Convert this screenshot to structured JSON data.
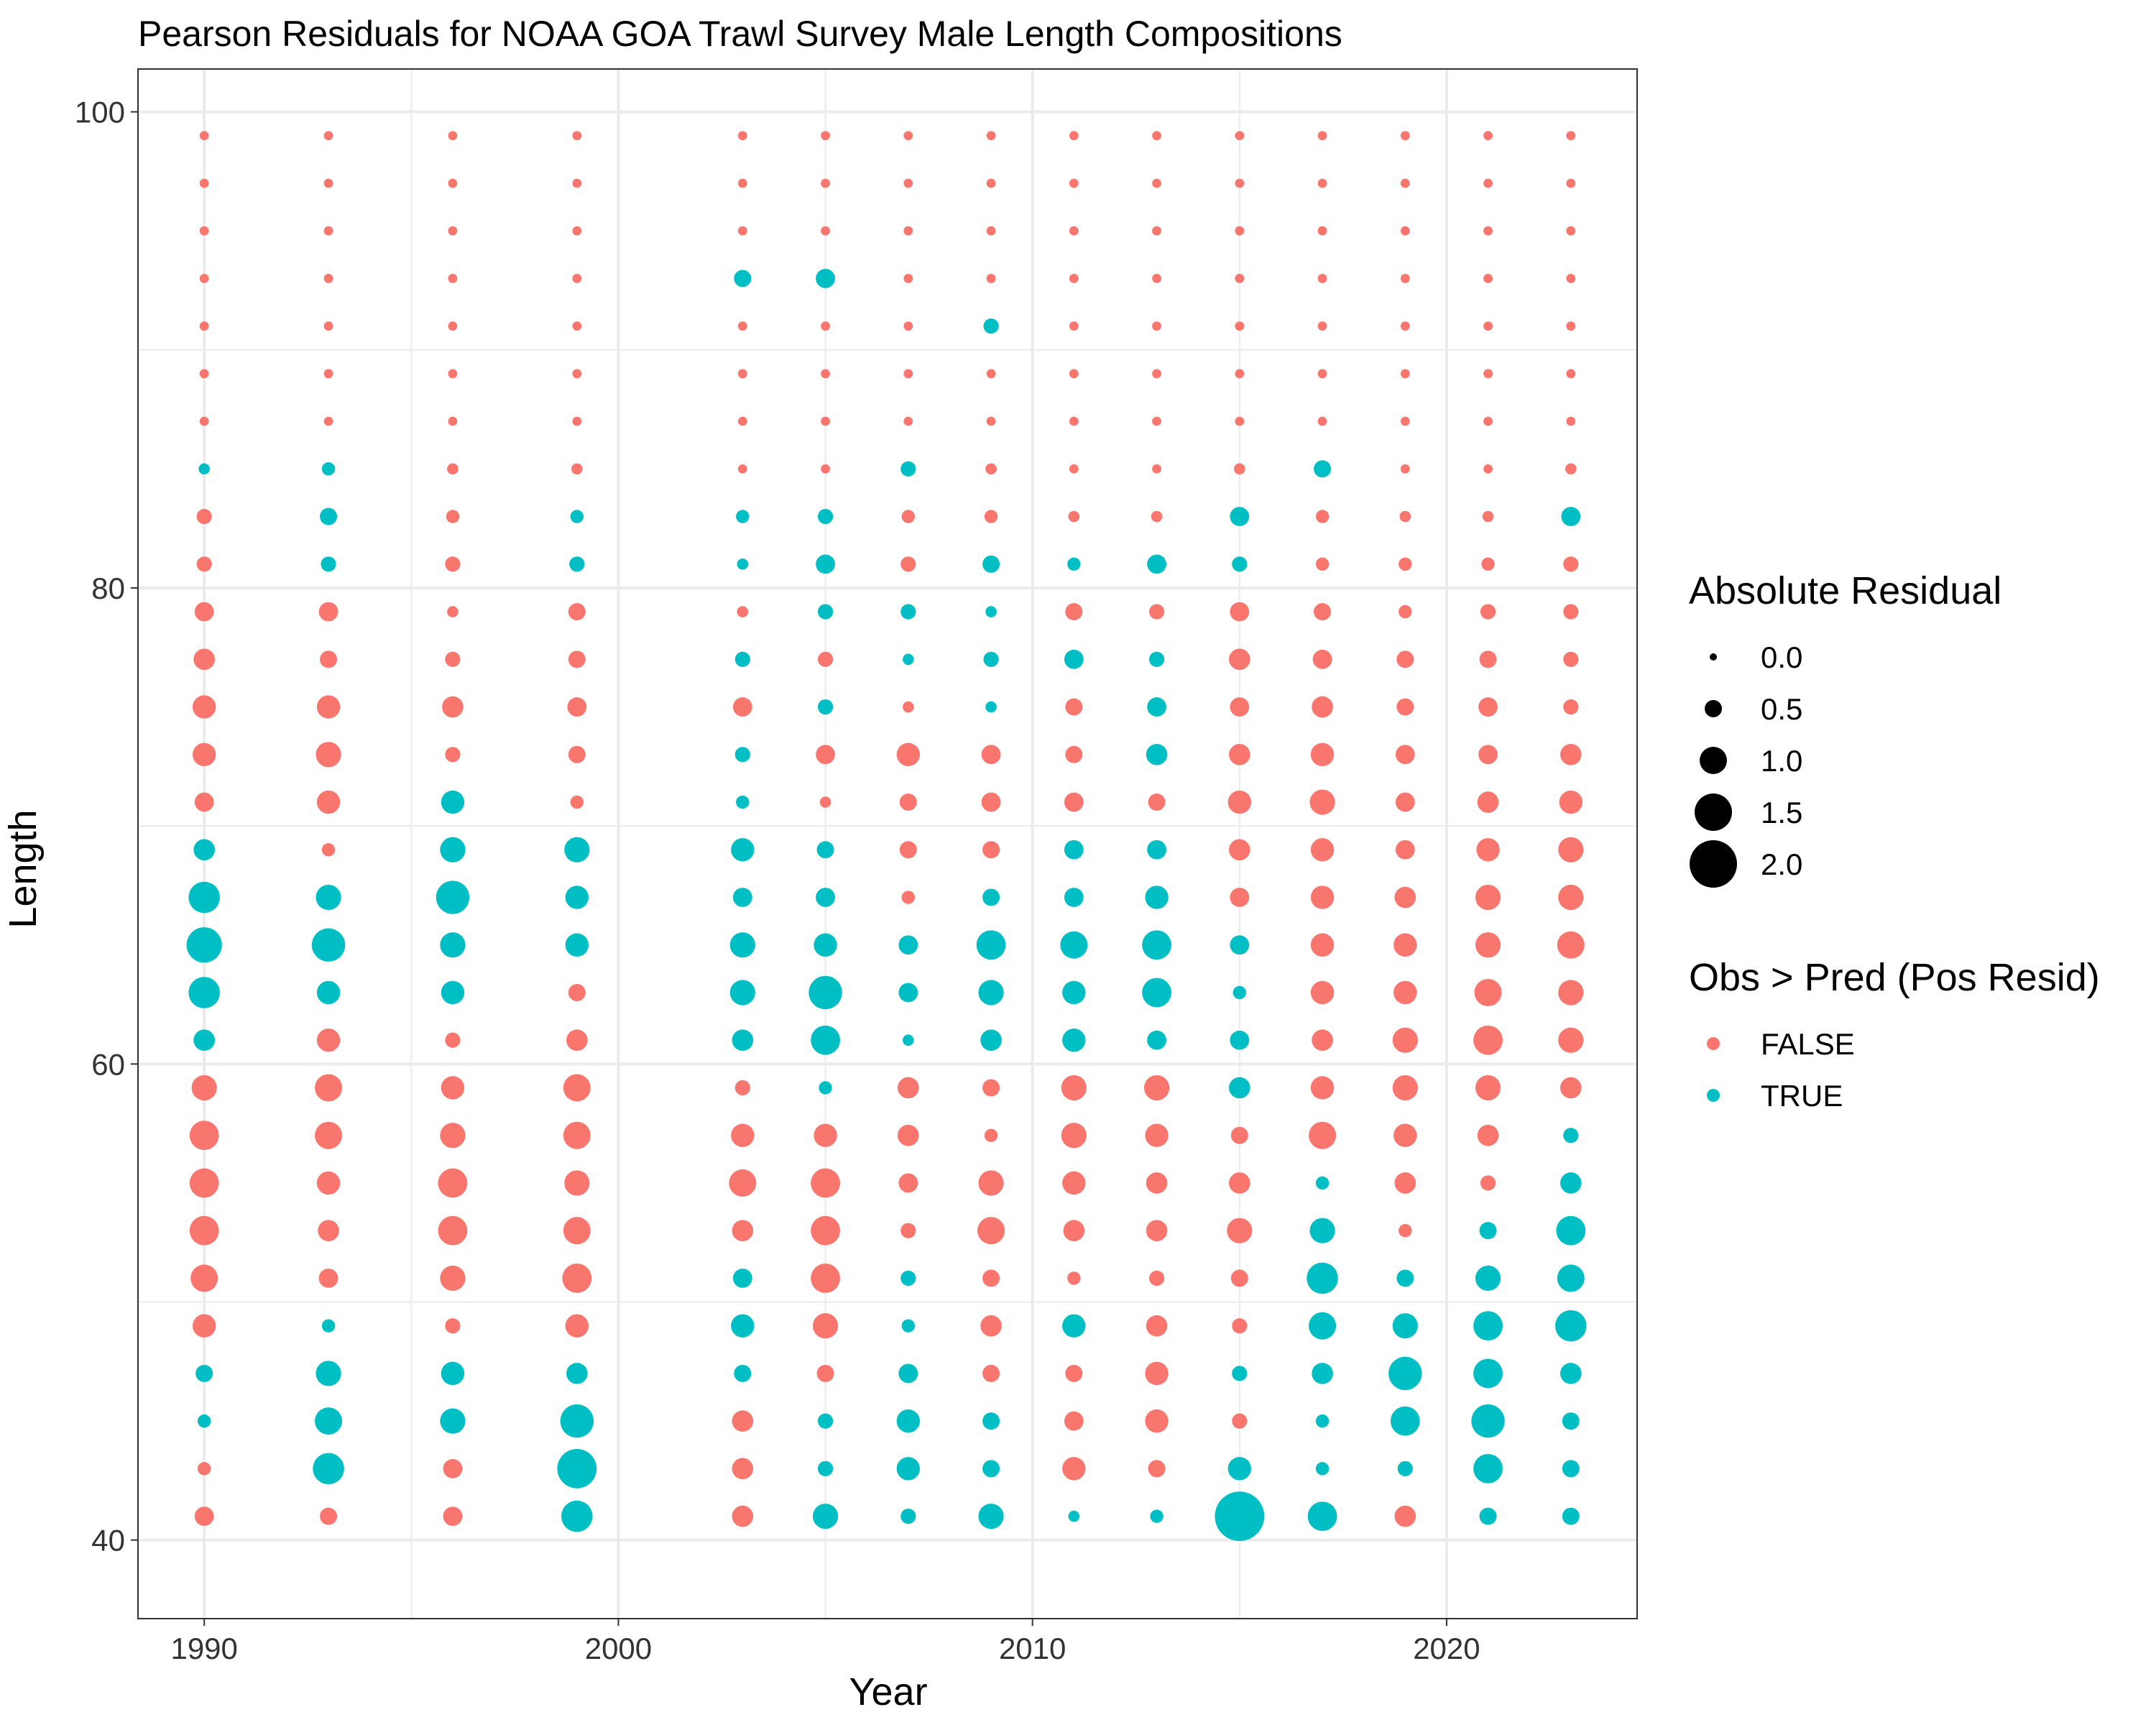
{
  "chart_data": {
    "type": "scatter",
    "title": "Pearson Residuals for NOAA GOA Trawl Survey Male Length Compositions",
    "xlabel": "Year",
    "ylabel": "Length",
    "xlim": [
      1988.4,
      2024.6
    ],
    "ylim": [
      36.7,
      101.8
    ],
    "x_ticks": [
      1990,
      2000,
      2010,
      2020
    ],
    "y_ticks": [
      40,
      60,
      80,
      100
    ],
    "grid": true,
    "years": [
      1990,
      1993,
      1996,
      1999,
      2003,
      2005,
      2007,
      2009,
      2011,
      2013,
      2015,
      2017,
      2019,
      2021,
      2023
    ],
    "lengths": [
      41,
      43,
      45,
      47,
      49,
      51,
      53,
      55,
      57,
      59,
      61,
      63,
      65,
      67,
      69,
      71,
      73,
      75,
      77,
      79,
      81,
      83,
      85,
      87,
      89,
      91,
      93,
      95,
      97,
      99
    ],
    "note_encoding": "abs_residual[i][j] and positive[i][j] are indexed by year i and length j; point size encodes abs_residual, color encodes positive",
    "abs_residual": [
      [
        0.6,
        0.3,
        0.3,
        0.5,
        0.8,
        1.0,
        1.1,
        1.1,
        1.1,
        0.9,
        0.7,
        1.2,
        1.4,
        1.2,
        0.7,
        0.6,
        0.8,
        0.8,
        0.7,
        0.6,
        0.4,
        0.4,
        0.2,
        0.1,
        0.1,
        0.1,
        0.1,
        0.1,
        0.1,
        0.1
      ],
      [
        0.5,
        1.2,
        1.0,
        0.9,
        0.3,
        0.6,
        0.7,
        0.8,
        1.0,
        1.0,
        0.8,
        0.8,
        1.3,
        0.9,
        0.3,
        0.8,
        0.9,
        0.8,
        0.5,
        0.6,
        0.4,
        0.5,
        0.3,
        0.1,
        0.1,
        0.1,
        0.1,
        0.1,
        0.1,
        0.1
      ],
      [
        0.6,
        0.6,
        0.9,
        0.8,
        0.4,
        0.9,
        1.1,
        1.1,
        0.9,
        0.8,
        0.4,
        0.8,
        0.9,
        1.3,
        0.9,
        0.8,
        0.4,
        0.7,
        0.4,
        0.2,
        0.4,
        0.3,
        0.2,
        0.1,
        0.1,
        0.1,
        0.1,
        0.1,
        0.1,
        0.1
      ],
      [
        1.2,
        1.6,
        1.3,
        0.7,
        0.8,
        1.1,
        1.0,
        0.9,
        1.0,
        1.0,
        0.7,
        0.5,
        0.8,
        0.8,
        0.9,
        0.3,
        0.5,
        0.6,
        0.5,
        0.5,
        0.4,
        0.3,
        0.2,
        0.1,
        0.1,
        0.1,
        0.1,
        0.1,
        0.1,
        0.1
      ],
      [
        0.7,
        0.7,
        0.7,
        0.5,
        0.8,
        0.6,
        0.7,
        1.0,
        0.8,
        0.4,
        0.7,
        0.9,
        0.9,
        0.6,
        0.8,
        0.3,
        0.4,
        0.6,
        0.4,
        0.2,
        0.2,
        0.3,
        0.1,
        0.1,
        0.1,
        0.1,
        0.5,
        0.1,
        0.1,
        0.1
      ],
      [
        0.9,
        0.4,
        0.4,
        0.5,
        0.9,
        1.1,
        1.1,
        1.1,
        0.8,
        0.3,
        1.1,
        1.3,
        0.8,
        0.6,
        0.5,
        0.2,
        0.6,
        0.4,
        0.4,
        0.4,
        0.6,
        0.4,
        0.1,
        0.1,
        0.1,
        0.1,
        0.6,
        0.1,
        0.1,
        0.1
      ],
      [
        0.4,
        0.8,
        0.8,
        0.6,
        0.3,
        0.4,
        0.4,
        0.6,
        0.7,
        0.7,
        0.2,
        0.6,
        0.6,
        0.3,
        0.5,
        0.5,
        0.8,
        0.2,
        0.2,
        0.4,
        0.4,
        0.3,
        0.4,
        0.1,
        0.1,
        0.1,
        0.1,
        0.1,
        0.1,
        0.1
      ],
      [
        0.9,
        0.5,
        0.5,
        0.5,
        0.7,
        0.5,
        1.0,
        0.9,
        0.3,
        0.5,
        0.7,
        0.9,
        1.1,
        0.5,
        0.5,
        0.6,
        0.6,
        0.2,
        0.4,
        0.2,
        0.5,
        0.3,
        0.2,
        0.1,
        0.1,
        0.4,
        0.1,
        0.1,
        0.1,
        0.1
      ],
      [
        0.2,
        0.8,
        0.6,
        0.5,
        0.8,
        0.3,
        0.7,
        0.8,
        0.9,
        0.9,
        0.8,
        0.8,
        1.0,
        0.6,
        0.6,
        0.6,
        0.5,
        0.5,
        0.6,
        0.5,
        0.3,
        0.2,
        0.1,
        0.1,
        0.1,
        0.1,
        0.1,
        0.1,
        0.1,
        0.1
      ],
      [
        0.3,
        0.5,
        0.8,
        0.8,
        0.7,
        0.4,
        0.7,
        0.7,
        0.8,
        0.9,
        0.6,
        1.1,
        1.1,
        0.8,
        0.6,
        0.5,
        0.7,
        0.6,
        0.4,
        0.4,
        0.6,
        0.2,
        0.1,
        0.1,
        0.1,
        0.1,
        0.1,
        0.1,
        0.1,
        0.1
      ],
      [
        2.1,
        0.8,
        0.4,
        0.4,
        0.4,
        0.5,
        0.9,
        0.7,
        0.5,
        0.7,
        0.6,
        0.3,
        0.6,
        0.6,
        0.7,
        0.8,
        0.7,
        0.6,
        0.7,
        0.6,
        0.4,
        0.6,
        0.2,
        0.1,
        0.1,
        0.1,
        0.1,
        0.1,
        0.1,
        0.1
      ],
      [
        1.1,
        0.3,
        0.3,
        0.7,
        1.0,
        1.2,
        0.9,
        0.3,
        1.0,
        0.8,
        0.7,
        0.8,
        0.8,
        0.8,
        0.8,
        0.9,
        0.8,
        0.7,
        0.6,
        0.5,
        0.3,
        0.3,
        0.5,
        0.1,
        0.1,
        0.1,
        0.1,
        0.1,
        0.1,
        0.1
      ],
      [
        0.7,
        0.4,
        1.1,
        1.3,
        0.9,
        0.5,
        0.3,
        0.7,
        0.8,
        0.9,
        0.9,
        0.8,
        0.8,
        0.7,
        0.6,
        0.6,
        0.6,
        0.5,
        0.5,
        0.3,
        0.3,
        0.2,
        0.1,
        0.1,
        0.1,
        0.1,
        0.1,
        0.1,
        0.1,
        0.1
      ],
      [
        0.5,
        1.1,
        1.3,
        1.1,
        1.1,
        0.9,
        0.5,
        0.4,
        0.7,
        0.9,
        1.1,
        1.0,
        0.9,
        0.9,
        0.8,
        0.7,
        0.6,
        0.6,
        0.5,
        0.4,
        0.3,
        0.2,
        0.1,
        0.1,
        0.1,
        0.1,
        0.1,
        0.1,
        0.1,
        0.1
      ],
      [
        0.5,
        0.5,
        0.5,
        0.7,
        1.2,
        1.0,
        1.1,
        0.7,
        0.4,
        0.7,
        0.9,
        0.9,
        1.0,
        0.9,
        0.9,
        0.8,
        0.7,
        0.4,
        0.4,
        0.4,
        0.4,
        0.6,
        0.2,
        0.1,
        0.1,
        0.1,
        0.1,
        0.1,
        0.1,
        0.1
      ]
    ],
    "positive": [
      [
        false,
        false,
        true,
        true,
        false,
        false,
        false,
        false,
        false,
        false,
        true,
        true,
        true,
        true,
        true,
        false,
        false,
        false,
        false,
        false,
        false,
        false,
        true,
        false,
        false,
        false,
        false,
        false,
        false,
        false
      ],
      [
        false,
        true,
        true,
        true,
        true,
        false,
        false,
        false,
        false,
        false,
        false,
        true,
        true,
        true,
        false,
        false,
        false,
        false,
        false,
        false,
        true,
        true,
        true,
        false,
        false,
        false,
        false,
        false,
        false,
        false
      ],
      [
        false,
        false,
        true,
        true,
        false,
        false,
        false,
        false,
        false,
        false,
        false,
        true,
        true,
        true,
        true,
        true,
        false,
        false,
        false,
        false,
        false,
        false,
        false,
        false,
        false,
        false,
        false,
        false,
        false,
        false
      ],
      [
        true,
        true,
        true,
        true,
        false,
        false,
        false,
        false,
        false,
        false,
        false,
        false,
        true,
        true,
        true,
        false,
        false,
        false,
        false,
        false,
        true,
        true,
        false,
        false,
        false,
        false,
        false,
        false,
        false,
        false
      ],
      [
        false,
        false,
        false,
        true,
        true,
        true,
        false,
        false,
        false,
        false,
        true,
        true,
        true,
        true,
        true,
        true,
        true,
        false,
        true,
        false,
        true,
        true,
        false,
        false,
        false,
        false,
        true,
        false,
        false,
        false
      ],
      [
        true,
        true,
        true,
        false,
        false,
        false,
        false,
        false,
        false,
        true,
        true,
        true,
        true,
        true,
        true,
        false,
        false,
        true,
        false,
        true,
        true,
        true,
        false,
        false,
        false,
        false,
        true,
        false,
        false,
        false
      ],
      [
        true,
        true,
        true,
        true,
        true,
        true,
        false,
        false,
        false,
        false,
        true,
        true,
        true,
        false,
        false,
        false,
        false,
        false,
        true,
        true,
        false,
        false,
        true,
        false,
        false,
        false,
        false,
        false,
        false,
        false
      ],
      [
        true,
        true,
        true,
        false,
        false,
        false,
        false,
        false,
        false,
        false,
        true,
        true,
        true,
        true,
        false,
        false,
        false,
        true,
        true,
        true,
        true,
        false,
        false,
        false,
        false,
        true,
        false,
        false,
        false,
        false
      ],
      [
        true,
        false,
        false,
        false,
        true,
        false,
        false,
        false,
        false,
        false,
        true,
        true,
        true,
        true,
        true,
        false,
        false,
        false,
        true,
        false,
        true,
        false,
        false,
        false,
        false,
        false,
        false,
        false,
        false,
        false
      ],
      [
        true,
        false,
        false,
        false,
        false,
        false,
        false,
        false,
        false,
        false,
        true,
        true,
        true,
        true,
        true,
        false,
        true,
        true,
        true,
        false,
        true,
        false,
        false,
        false,
        false,
        false,
        false,
        false,
        false,
        false
      ],
      [
        true,
        true,
        false,
        true,
        false,
        false,
        false,
        false,
        false,
        true,
        true,
        true,
        true,
        false,
        false,
        false,
        false,
        false,
        false,
        false,
        true,
        true,
        false,
        false,
        false,
        false,
        false,
        false,
        false,
        false
      ],
      [
        true,
        true,
        true,
        true,
        true,
        true,
        true,
        true,
        false,
        false,
        false,
        false,
        false,
        false,
        false,
        false,
        false,
        false,
        false,
        false,
        false,
        false,
        true,
        false,
        false,
        false,
        false,
        false,
        false,
        false
      ],
      [
        false,
        true,
        true,
        true,
        true,
        true,
        false,
        false,
        false,
        false,
        false,
        false,
        false,
        false,
        false,
        false,
        false,
        false,
        false,
        false,
        false,
        false,
        false,
        false,
        false,
        false,
        false,
        false,
        false,
        false
      ],
      [
        true,
        true,
        true,
        true,
        true,
        true,
        true,
        false,
        false,
        false,
        false,
        false,
        false,
        false,
        false,
        false,
        false,
        false,
        false,
        false,
        false,
        false,
        false,
        false,
        false,
        false,
        false,
        false,
        false,
        false
      ],
      [
        true,
        true,
        true,
        true,
        true,
        true,
        true,
        true,
        true,
        false,
        false,
        false,
        false,
        false,
        false,
        false,
        false,
        false,
        false,
        false,
        false,
        true,
        false,
        false,
        false,
        false,
        false,
        false,
        false,
        false
      ]
    ]
  },
  "legend_size": {
    "title": "Absolute Residual",
    "items": [
      {
        "label": "0.0",
        "value": 0.0
      },
      {
        "label": "0.5",
        "value": 0.5
      },
      {
        "label": "1.0",
        "value": 1.0
      },
      {
        "label": "1.5",
        "value": 1.5
      },
      {
        "label": "2.0",
        "value": 2.0
      }
    ]
  },
  "legend_color": {
    "title": "Obs > Pred (Pos Resid)",
    "items": [
      {
        "label": "FALSE",
        "color": "#F8766D"
      },
      {
        "label": "TRUE",
        "color": "#00BFC4"
      }
    ]
  },
  "colors": {
    "false": "#F8766D",
    "true": "#00BFC4",
    "grid": "#EBEBEB",
    "legend_size_key": "#000000"
  }
}
